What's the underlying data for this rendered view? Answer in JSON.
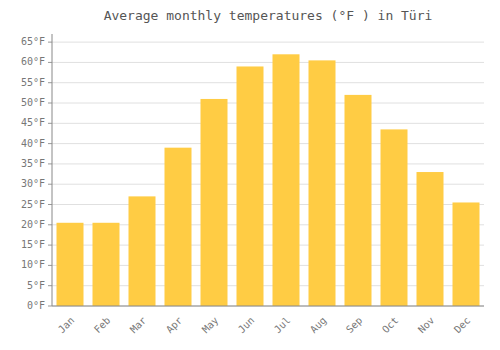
{
  "chart_data": {
    "type": "bar",
    "title": "Average monthly temperatures (°F ) in Türi",
    "categories": [
      "Jan",
      "Feb",
      "Mar",
      "Apr",
      "May",
      "Jun",
      "Jul",
      "Aug",
      "Sep",
      "Oct",
      "Nov",
      "Dec"
    ],
    "values": [
      20.5,
      20.5,
      27.0,
      39.0,
      51.0,
      59.0,
      62.0,
      60.5,
      52.0,
      43.5,
      33.0,
      25.5
    ],
    "color": "#FFCC44",
    "ylim": [
      0,
      67
    ],
    "yticks": [
      {
        "value": 0,
        "label": "0°F"
      },
      {
        "value": 5,
        "label": "5°F"
      },
      {
        "value": 10,
        "label": "10°F"
      },
      {
        "value": 15,
        "label": "15°F"
      },
      {
        "value": 20,
        "label": "20°F"
      },
      {
        "value": 25,
        "label": "25°F"
      },
      {
        "value": 30,
        "label": "30°F"
      },
      {
        "value": 35,
        "label": "35°F"
      },
      {
        "value": 40,
        "label": "40°F"
      },
      {
        "value": 45,
        "label": "45°F"
      },
      {
        "value": 50,
        "label": "50°F"
      },
      {
        "value": 55,
        "label": "55°F"
      },
      {
        "value": 60,
        "label": "60°F"
      },
      {
        "value": 65,
        "label": "65°F"
      }
    ],
    "grid": true
  }
}
